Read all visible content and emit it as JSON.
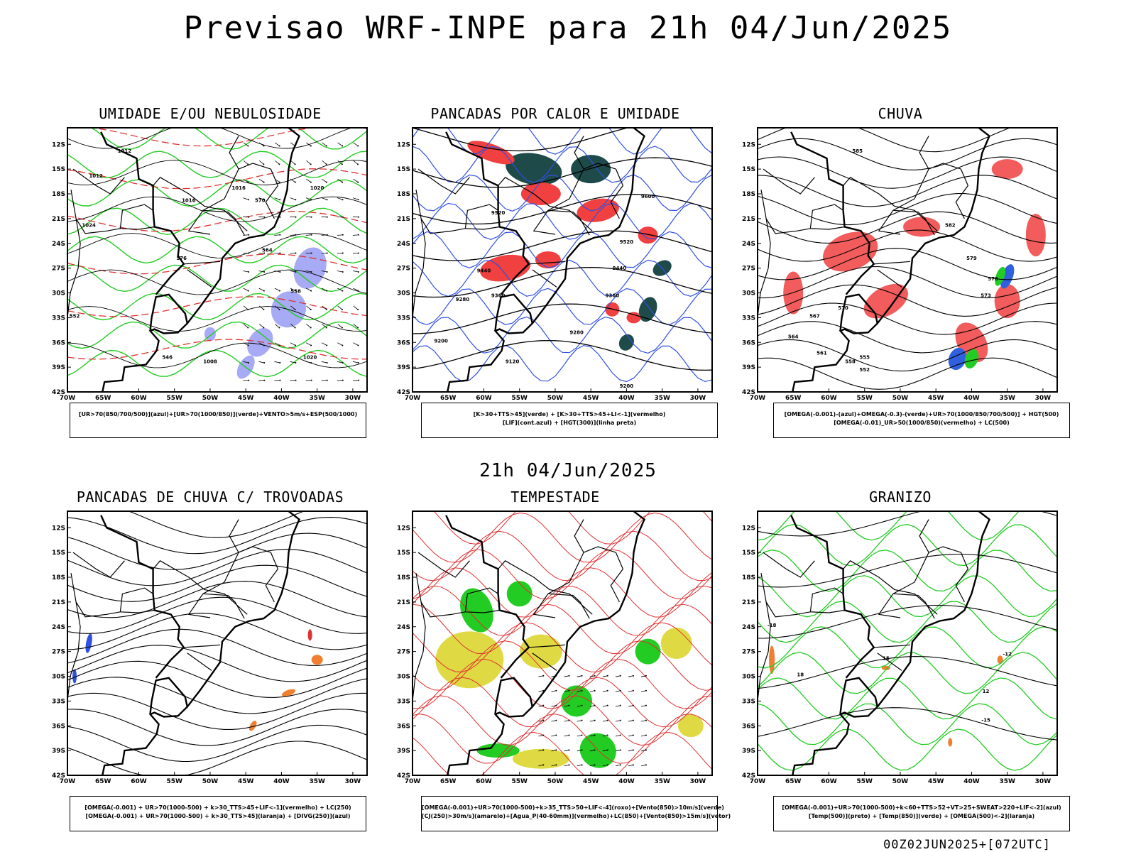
{
  "header": {
    "title": "Previsao WRF-INPE  para 21h 04/Jun/2025",
    "subtitle": "21h 04/Jun/2025",
    "footer": "00Z02JUN2025+[072UTC]"
  },
  "axes": {
    "lat_labels": [
      "12S",
      "15S",
      "18S",
      "21S",
      "24S",
      "27S",
      "30S",
      "33S",
      "36S",
      "39S",
      "42S"
    ],
    "lon_labels": [
      "70W",
      "65W",
      "60W",
      "55W",
      "50W",
      "45W",
      "40W",
      "35W",
      "30W"
    ]
  },
  "panels": [
    {
      "id": "umidade",
      "title": "UMIDADE E/OU NEBULOSIDADE",
      "legend": [
        "[UR>70(850/700/500)](azul)+[UR>70(1000/850)](verde)+VENTO>5m/s+ESP(500/1000)"
      ],
      "contour_labels": [
        "1012",
        "1016",
        "1020",
        "1024",
        "570",
        "576",
        "564",
        "558",
        "552",
        "546",
        "1008"
      ]
    },
    {
      "id": "pancadas-calor",
      "title": "PANCADAS POR CALOR E UMIDADE",
      "legend": [
        "[K>30+TTS>45](verde) + [K>30+TTS>45+LI<-1](vermelho)",
        "[LIF](cont.azul) + [HGT(300)](linha preta)"
      ],
      "contour_labels": [
        "9600",
        "9520",
        "9440",
        "9360",
        "9280",
        "9200",
        "9120"
      ]
    },
    {
      "id": "chuva",
      "title": "CHUVA",
      "legend": [
        "[OMEGA(-0.001)-(azul)+OMEGA(-0.3)-(verde)+UR>70(1000/850/700/500)] + HGT(500)",
        "[OMEGA(-0.01)_UR>50(1000/850)(vermelho) + LC(500)"
      ],
      "contour_labels": [
        "585",
        "582",
        "579",
        "576",
        "573",
        "570",
        "567",
        "564",
        "561",
        "558",
        "555",
        "552"
      ]
    },
    {
      "id": "trovoadas",
      "title": "PANCADAS DE CHUVA C/ TROVOADAS",
      "legend": [
        "[OMEGA(-0.001) + UR>70(1000-500) + k>30_TTS>45+LIF<-1](vermelho) + LC(250)",
        "[OMEGA(-0.001) + UR>70(1000-500) + k>30_TTS>45](laranja) + [DIVG(250)](azul)"
      ],
      "contour_labels": []
    },
    {
      "id": "tempestade",
      "title": "TEMPESTADE",
      "legend": [
        "[OMEGA(-0.001)+UR>70(1000-500)+k>35_TTS>50+LIF<-4](roxo)+[Vento(850)>10m/s](verde)",
        "[CJ(250)>30m/s](amarelo)+[Agua_P(40-60mm)](vermelho)+LC(850)+[Vento(850)>15m/s](vetor)"
      ],
      "contour_labels": []
    },
    {
      "id": "granizo",
      "title": "GRANIZO",
      "legend": [
        "[OMEGA(-0.001)+UR>70(1000-500)+k<60+TTS>52+VT>25+SWEAT>220+LIF<-2](azul)",
        "[Temp(500)](preto) + [Temp(850)](verde) + [OMEGA(500)<-2](laranja)"
      ],
      "contour_labels": [
        "12",
        "15",
        "18",
        "-12",
        "-15",
        "-18"
      ]
    }
  ]
}
